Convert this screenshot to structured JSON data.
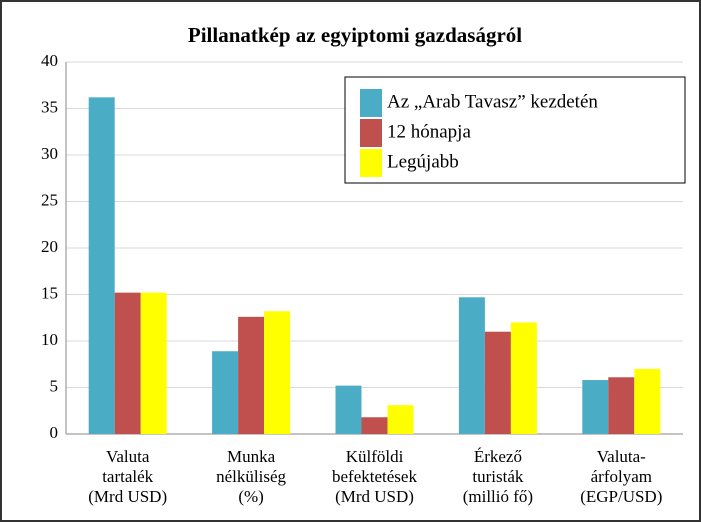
{
  "chart_data": {
    "type": "bar",
    "title": "Pillanatkép az egyiptomi gazdaságról",
    "categories": [
      "Valuta\ntartalék\n(Mrd USD)",
      "Munka\nnélküliség\n(%)",
      "Külföldi\nbefektetések\n(Mrd USD)",
      "Érkező\nturisták\n(millió fő)",
      "Valuta-\nárfolyam\n(EGP/USD)"
    ],
    "series": [
      {
        "name": "Az „Arab Tavasz” kezdetén",
        "color": "#4bacc6",
        "values": [
          36.2,
          8.9,
          5.2,
          14.7,
          5.8
        ]
      },
      {
        "name": "12 hónapja",
        "color": "#c0504d",
        "values": [
          15.2,
          12.6,
          1.8,
          11.0,
          6.1
        ]
      },
      {
        "name": "Legújabb",
        "color": "#ffff00",
        "values": [
          15.2,
          13.2,
          3.1,
          12.0,
          7.0
        ]
      }
    ],
    "ylim": [
      0,
      40
    ],
    "yticks": [
      0,
      5,
      10,
      15,
      20,
      25,
      30,
      35,
      40
    ],
    "grid": true,
    "legend": "upper right"
  }
}
